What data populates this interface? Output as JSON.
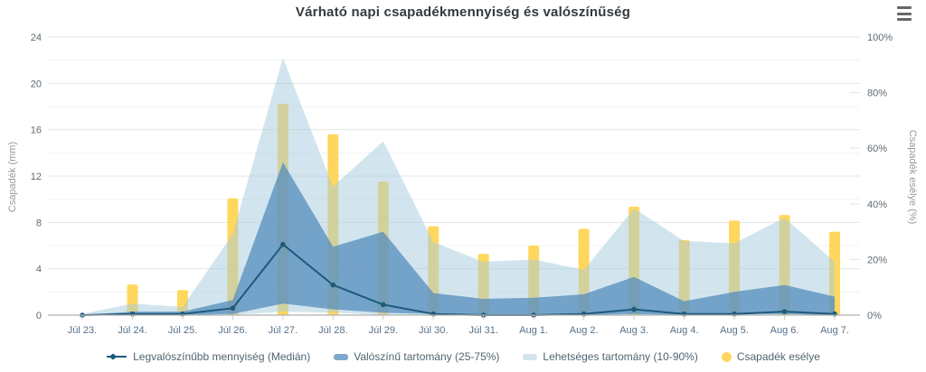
{
  "chart_data": {
    "type": "area",
    "subtype": "arearange bands + median line (left axis, mm) + probability columns (right axis, %)",
    "title": "Várható napi csapadékmennyiség és valószínűség",
    "ylabel_left": "Csapadék (mm)",
    "ylabel_right": "Csapadék esélye (%)",
    "ylim_left": [
      0,
      24
    ],
    "ylim_right_pct": [
      0,
      100
    ],
    "yticks_left": [
      0,
      4,
      8,
      12,
      16,
      20,
      24
    ],
    "yticks_right_labels": [
      "0%",
      "20%",
      "40%",
      "60%",
      "80%",
      "100%"
    ],
    "grid": "horizontal gridlines: major every 4 mm, faint minor every 2 mm",
    "legend_position": "bottom",
    "categories": [
      "Júl 23.",
      "Júl 24.",
      "Júl 25.",
      "Júl 26.",
      "Júl 27.",
      "Júl 28.",
      "Júl 29.",
      "Júl 30.",
      "Júl 31.",
      "Aug 1.",
      "Aug 2.",
      "Aug 3.",
      "Aug 4.",
      "Aug 5.",
      "Aug 6.",
      "Aug 7."
    ],
    "series": [
      {
        "name": "Legvalószínűbb mennyiség (Medián)",
        "kind": "line",
        "axis": "left",
        "values": [
          0,
          0.1,
          0.1,
          0.6,
          6.1,
          2.6,
          0.9,
          0.1,
          0,
          0,
          0.1,
          0.5,
          0.1,
          0.1,
          0.3,
          0.1
        ]
      },
      {
        "name": "Valószínű tartomány (25-75%)",
        "kind": "arearange",
        "axis": "left",
        "low": [
          0,
          0,
          0,
          0.1,
          1.0,
          0.5,
          0.2,
          0.1,
          0,
          0,
          0,
          0.1,
          0,
          0.1,
          0.1,
          0
        ],
        "high": [
          0,
          0.3,
          0.3,
          1.3,
          13.2,
          5.9,
          7.2,
          1.9,
          1.4,
          1.5,
          1.8,
          3.3,
          1.2,
          2.0,
          2.6,
          1.6
        ]
      },
      {
        "name": "Lehetséges tartomány (10-90%)",
        "kind": "arearange",
        "axis": "left",
        "low": [
          0,
          0,
          0,
          0,
          0.3,
          0.2,
          0,
          0,
          0,
          0,
          0,
          0,
          0,
          0,
          0,
          0
        ],
        "high": [
          0.1,
          1.0,
          0.7,
          7.0,
          22.2,
          11.1,
          15.0,
          6.3,
          4.6,
          4.8,
          3.9,
          9.2,
          6.4,
          6.2,
          8.4,
          4.6
        ]
      },
      {
        "name": "Csapadék esélye",
        "kind": "column",
        "axis": "right",
        "values": [
          0,
          11,
          9,
          42,
          76,
          65,
          48,
          32,
          22,
          25,
          31,
          39,
          27,
          34,
          36,
          30
        ]
      }
    ],
    "colors": {
      "title": "#33393f",
      "median_line": "#1d5a7d",
      "range_25_75": "rgba(84,140,188,0.75)",
      "range_10_90": "rgba(165,203,221,0.5)",
      "chance_bar": "#ffd75e",
      "grid_major": "#e4e4e4",
      "grid_minor": "#f3f3f3",
      "axis_line": "#b0b0b0",
      "tick_mark": "#c9c9c9",
      "ytick_label": "#5e6a72",
      "xtick_label": "#55718a",
      "axis_title": "#949aa0",
      "legend_text": "#4f6470"
    }
  },
  "menu": {
    "tooltip": "Chart context menu"
  }
}
